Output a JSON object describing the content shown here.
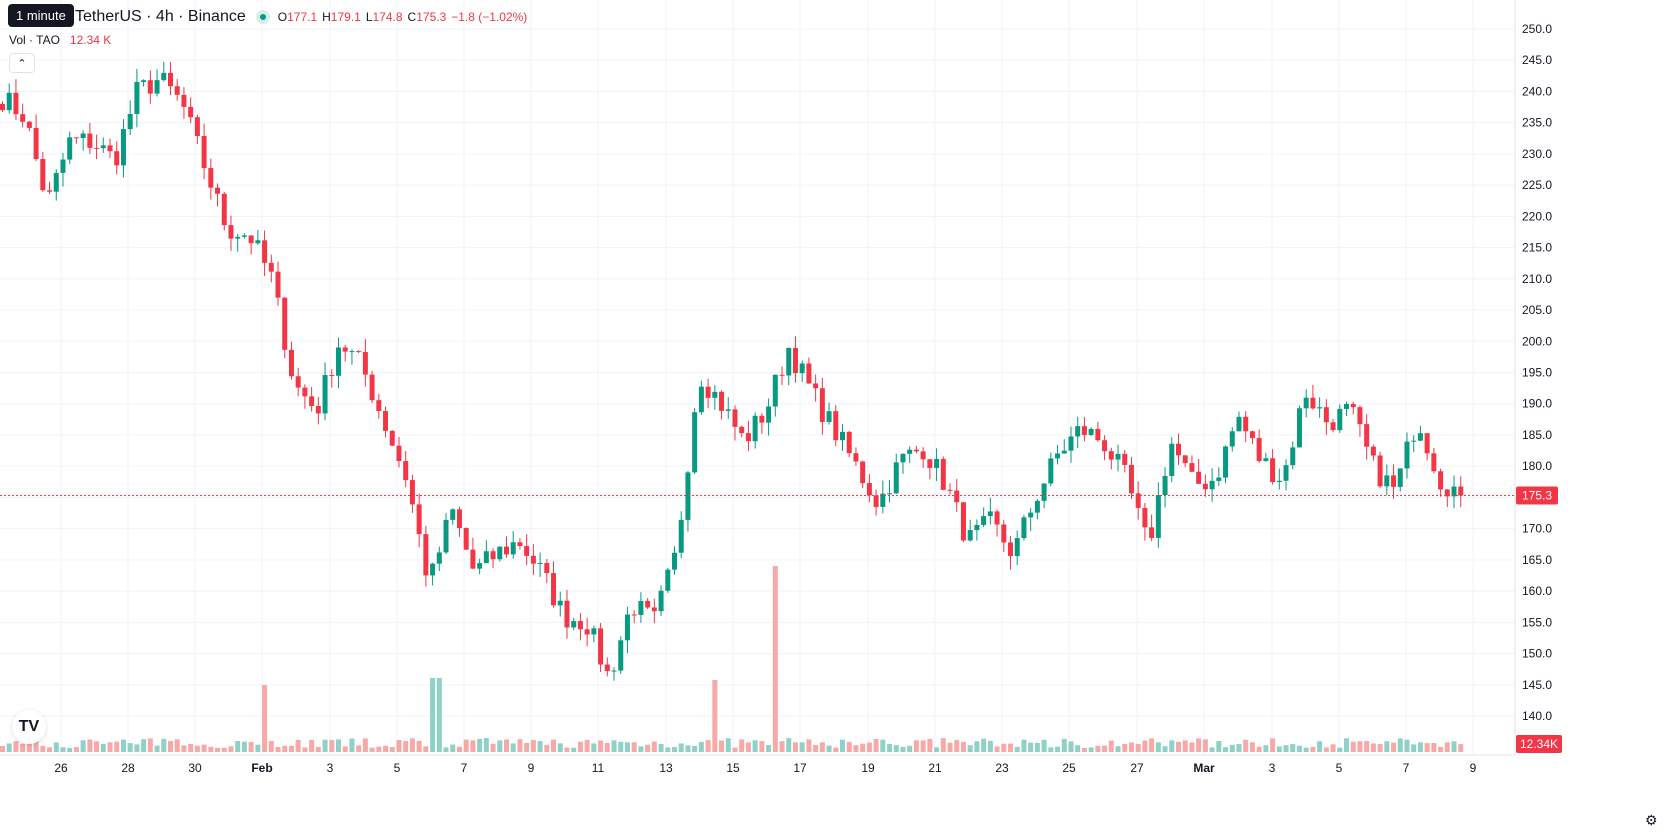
{
  "tooltip": "1 minute",
  "legend": {
    "symbol": "TetherUS · 4h · Binance",
    "o_label": "O",
    "o": "177.1",
    "h_label": "H",
    "h": "179.1",
    "l_label": "L",
    "l": "174.8",
    "c_label": "C",
    "c": "175.3",
    "change": "−1.8 (−1.02%)"
  },
  "volume_legend": {
    "label": "Vol · TAO",
    "value": "12.34 K"
  },
  "badges": {
    "price": "175.3",
    "volume": "12.34K"
  },
  "icons": {
    "collapse": "chevron-up-icon",
    "logo": "tradingview-logo-icon",
    "settings": "gear-icon"
  },
  "colors": {
    "up": "#089981",
    "down": "#f23645",
    "up_volume": "#8fd1c7",
    "down_volume": "#f7a9a7",
    "grid": "#f0f3fa",
    "last_price_line": "#f23645"
  },
  "chart_data": {
    "type": "candlestick",
    "title": "TetherUS · 4h · Binance",
    "price_axis": {
      "min": 140,
      "max": 250,
      "ticks": [
        "250.0",
        "245.0",
        "240.0",
        "235.0",
        "230.0",
        "225.0",
        "220.0",
        "215.0",
        "210.0",
        "205.0",
        "200.0",
        "195.0",
        "190.0",
        "185.0",
        "180.0",
        "175.0",
        "170.0",
        "165.0",
        "160.0",
        "155.0",
        "150.0",
        "145.0",
        "140.0"
      ]
    },
    "time_axis": {
      "ticks": [
        "26",
        "28",
        "30",
        "Feb",
        "3",
        "5",
        "7",
        "9",
        "11",
        "13",
        "15",
        "17",
        "19",
        "21",
        "23",
        "25",
        "27",
        "Mar",
        "3",
        "5",
        "7",
        "9"
      ]
    },
    "last_price": 175.3,
    "grid": true,
    "series": [
      {
        "name": "TetherUS · 4h · Binance",
        "anchors": [
          {
            "t": "Jan 24",
            "price": 239
          },
          {
            "t": "Jan 25",
            "price": 236
          },
          {
            "t": "Jan 25",
            "price": 222
          },
          {
            "t": "Jan 26",
            "price": 232
          },
          {
            "t": "Jan 27",
            "price": 232
          },
          {
            "t": "Jan 27",
            "price": 229
          },
          {
            "t": "Jan 28",
            "price": 240
          },
          {
            "t": "Jan 29",
            "price": 242
          },
          {
            "t": "Jan 29",
            "price": 238
          },
          {
            "t": "Jan 30",
            "price": 228
          },
          {
            "t": "Jan 31",
            "price": 218
          },
          {
            "t": "Jan 31",
            "price": 217
          },
          {
            "t": "Feb 1",
            "price": 210
          },
          {
            "t": "Feb 1",
            "price": 193
          },
          {
            "t": "Feb 2",
            "price": 189
          },
          {
            "t": "Feb 3",
            "price": 200
          },
          {
            "t": "Feb 4",
            "price": 196
          },
          {
            "t": "Feb 5",
            "price": 187
          },
          {
            "t": "Feb 6",
            "price": 178
          },
          {
            "t": "Feb 6",
            "price": 161
          },
          {
            "t": "Feb 7",
            "price": 173
          },
          {
            "t": "Feb 8",
            "price": 163
          },
          {
            "t": "Feb 8",
            "price": 166
          },
          {
            "t": "Feb 9",
            "price": 168
          },
          {
            "t": "Feb 10",
            "price": 163
          },
          {
            "t": "Feb 10",
            "price": 156
          },
          {
            "t": "Feb 11",
            "price": 155
          },
          {
            "t": "Feb 12",
            "price": 146
          },
          {
            "t": "Feb 13",
            "price": 158
          },
          {
            "t": "Feb 13",
            "price": 155
          },
          {
            "t": "Feb 14",
            "price": 166
          },
          {
            "t": "Feb 14",
            "price": 195
          },
          {
            "t": "Feb 15",
            "price": 190
          },
          {
            "t": "Feb 16",
            "price": 184
          },
          {
            "t": "Feb 16",
            "price": 189
          },
          {
            "t": "Feb 17",
            "price": 199
          },
          {
            "t": "Feb 18",
            "price": 192
          },
          {
            "t": "Feb 18",
            "price": 186
          },
          {
            "t": "Feb 19",
            "price": 180
          },
          {
            "t": "Feb 20",
            "price": 174
          },
          {
            "t": "Feb 21",
            "price": 181
          },
          {
            "t": "Feb 22",
            "price": 183
          },
          {
            "t": "Feb 22",
            "price": 177
          },
          {
            "t": "Feb 23",
            "price": 168
          },
          {
            "t": "Feb 24",
            "price": 171
          },
          {
            "t": "Feb 24",
            "price": 166
          },
          {
            "t": "Feb 25",
            "price": 175
          },
          {
            "t": "Feb 25",
            "price": 182
          },
          {
            "t": "Feb 26",
            "price": 186
          },
          {
            "t": "Feb 27",
            "price": 184
          },
          {
            "t": "Feb 27",
            "price": 178
          },
          {
            "t": "Feb 28",
            "price": 167
          },
          {
            "t": "Mar 1",
            "price": 184
          },
          {
            "t": "Mar 2",
            "price": 177
          },
          {
            "t": "Mar 2",
            "price": 178
          },
          {
            "t": "Mar 3",
            "price": 188
          },
          {
            "t": "Mar 4",
            "price": 181
          },
          {
            "t": "Mar 4",
            "price": 178
          },
          {
            "t": "Mar 5",
            "price": 192
          },
          {
            "t": "Mar 5",
            "price": 187
          },
          {
            "t": "Mar 6",
            "price": 189
          },
          {
            "t": "Mar 6",
            "price": 180
          },
          {
            "t": "Mar 7",
            "price": 176
          },
          {
            "t": "Mar 7",
            "price": 188
          },
          {
            "t": "Mar 8",
            "price": 178
          },
          {
            "t": "Mar 8",
            "price": 175.3
          }
        ],
        "volume_spikes": [
          {
            "t": "Feb 1",
            "volume": "high"
          },
          {
            "t": "Feb 6",
            "volume": "very high"
          },
          {
            "t": "Feb 14",
            "volume": "high"
          },
          {
            "t": "Feb 16",
            "volume": "very high"
          }
        ]
      }
    ]
  }
}
